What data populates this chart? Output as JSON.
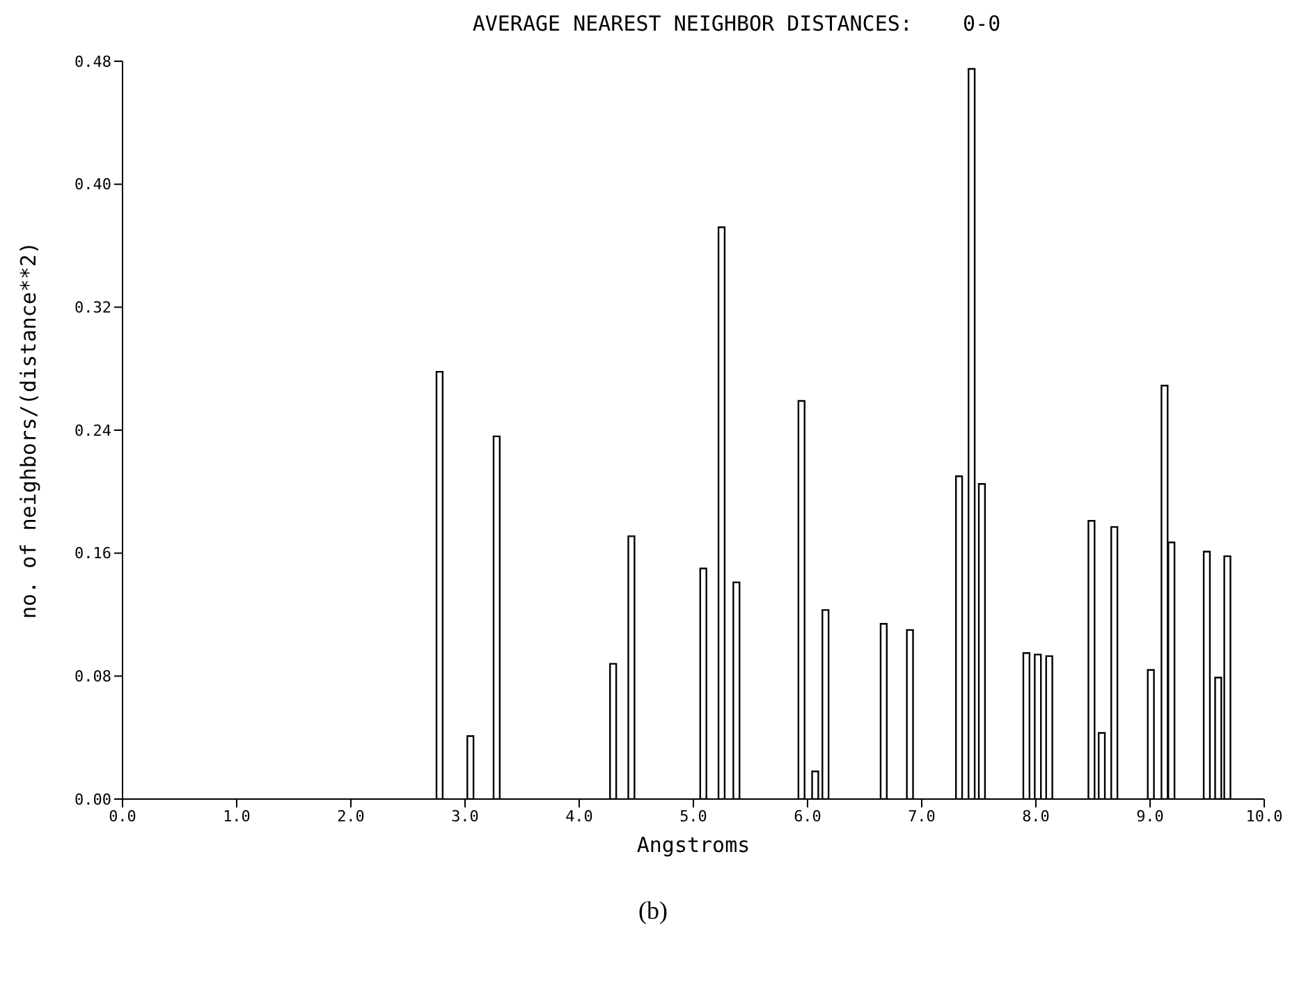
{
  "chart_data": {
    "type": "bar",
    "title": "AVERAGE NEAREST NEIGHBOR DISTANCES:    0-0",
    "xlabel": "Angstroms",
    "ylabel": "no. of neighbors/(distance**2)",
    "annotations": [
      "(b)"
    ],
    "x": [
      2.78,
      3.05,
      3.28,
      4.3,
      4.46,
      5.09,
      5.25,
      5.38,
      5.95,
      6.07,
      6.16,
      6.67,
      6.9,
      7.33,
      7.44,
      7.53,
      7.92,
      8.02,
      8.12,
      8.49,
      8.58,
      8.69,
      9.01,
      9.13,
      9.19,
      9.5,
      9.6,
      9.68
    ],
    "series": [
      {
        "color": "#000000",
        "values": [
          0.278,
          0.041,
          0.236,
          0.088,
          0.171,
          0.15,
          0.372,
          0.141,
          0.259,
          0.018,
          0.123,
          0.114,
          0.11,
          0.21,
          0.475,
          0.205,
          0.095,
          0.094,
          0.093,
          0.181,
          0.043,
          0.177,
          0.084,
          0.269,
          0.167,
          0.161,
          0.079,
          0.158
        ]
      }
    ],
    "xlim": [
      0,
      10
    ],
    "xticks": [
      {
        "value": 0,
        "label": "0.0"
      },
      {
        "value": 1,
        "label": "1.0"
      },
      {
        "value": 2,
        "label": "2.0"
      },
      {
        "value": 3,
        "label": "3.0"
      },
      {
        "value": 4,
        "label": "4.0"
      },
      {
        "value": 5,
        "label": "5.0"
      },
      {
        "value": 6,
        "label": "6.0"
      },
      {
        "value": 7,
        "label": "7.0"
      },
      {
        "value": 8,
        "label": "8.0"
      },
      {
        "value": 9,
        "label": "9.0"
      },
      {
        "value": 10,
        "label": "10.0"
      }
    ],
    "ylim": [
      0,
      0.48
    ],
    "yticks": [
      {
        "value": 0,
        "label": "0.00"
      },
      {
        "value": 0.08,
        "label": "0.08"
      },
      {
        "value": 0.16,
        "label": "0.16"
      },
      {
        "value": 0.24,
        "label": "0.24"
      },
      {
        "value": 0.32,
        "label": "0.32"
      },
      {
        "value": 0.4,
        "label": "0.40"
      },
      {
        "value": 0.48,
        "label": "0.48"
      }
    ],
    "grid": false,
    "legend": false
  }
}
